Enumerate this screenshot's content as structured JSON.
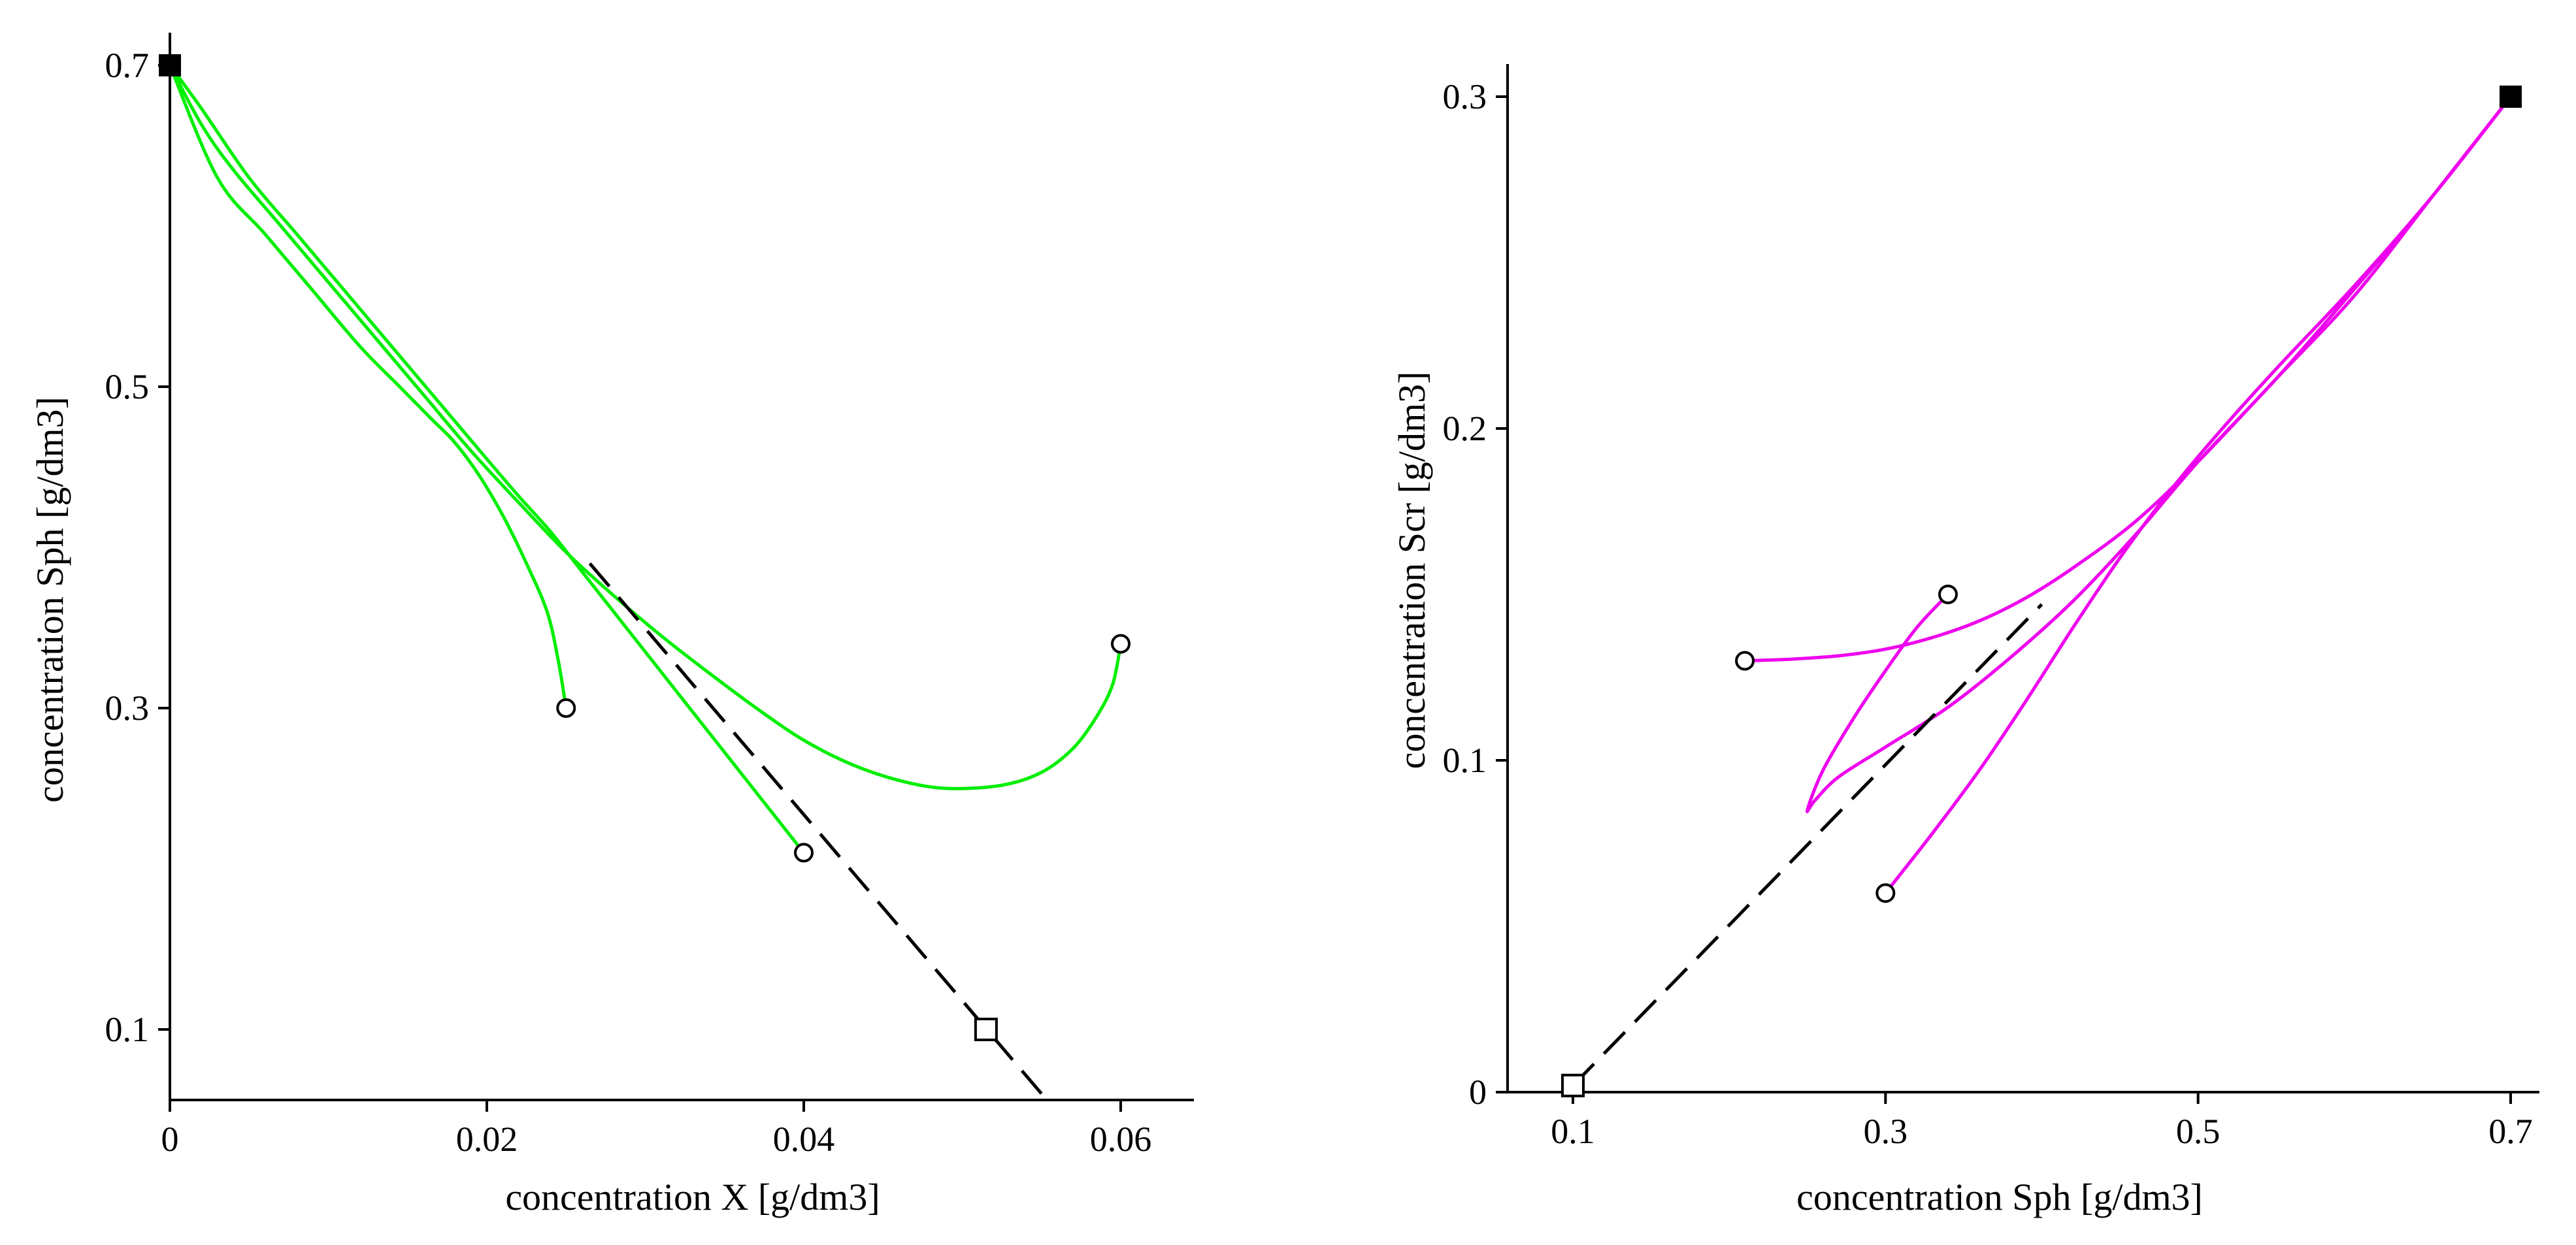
{
  "colors": {
    "left_curves": "#00ee00",
    "right_curves": "#ee00ee",
    "axis": "#000000",
    "dashed": "#000000"
  },
  "chart_data": [
    {
      "type": "line",
      "title": "",
      "xlabel": "concentration X [g/dm3]",
      "ylabel": "concentration Sph [g/dm3]",
      "xlim": [
        0,
        0.065
      ],
      "ylim": [
        0.055,
        0.72
      ],
      "xticks": [
        0,
        0.02,
        0.04,
        0.06
      ],
      "xtick_labels": [
        "0",
        "0.02",
        "0.04",
        "0.06"
      ],
      "yticks": [
        0.1,
        0.3,
        0.5,
        0.7
      ],
      "ytick_labels": [
        "0.1",
        "0.3",
        "0.5",
        "0.7"
      ],
      "series": [
        {
          "name": "trajectory-1",
          "color": "#00ee00",
          "x": [
            0.025,
            0.0245,
            0.0238,
            0.0225,
            0.021,
            0.0195,
            0.018,
            0.0165,
            0.0145,
            0.012,
            0.009,
            0.006,
            0.003,
            0
          ],
          "y": [
            0.3,
            0.33,
            0.36,
            0.39,
            0.42,
            0.445,
            0.465,
            0.48,
            0.5,
            0.525,
            0.56,
            0.595,
            0.63,
            0.7
          ]
        },
        {
          "name": "trajectory-2",
          "color": "#00ee00",
          "x": [
            0.04,
            0.038,
            0.036,
            0.034,
            0.032,
            0.03,
            0.028,
            0.026,
            0.024,
            0.022,
            0.02,
            0.017,
            0.014,
            0.011,
            0.008,
            0.005,
            0.002,
            0
          ],
          "y": [
            0.21,
            0.235,
            0.26,
            0.285,
            0.31,
            0.335,
            0.36,
            0.385,
            0.41,
            0.432,
            0.455,
            0.49,
            0.525,
            0.56,
            0.595,
            0.63,
            0.673,
            0.7
          ]
        },
        {
          "name": "trajectory-3",
          "color": "#00ee00",
          "x": [
            0.06,
            0.0595,
            0.0585,
            0.057,
            0.055,
            0.0525,
            0.049,
            0.046,
            0.043,
            0.04,
            0.037,
            0.034,
            0.031,
            0.028,
            0.025,
            0.022,
            0.019,
            0.016,
            0.013,
            0.01,
            0.007,
            0.004,
            0.002,
            0
          ],
          "y": [
            0.34,
            0.315,
            0.295,
            0.275,
            0.26,
            0.252,
            0.25,
            0.255,
            0.265,
            0.28,
            0.3,
            0.322,
            0.345,
            0.37,
            0.397,
            0.428,
            0.46,
            0.495,
            0.53,
            0.565,
            0.6,
            0.635,
            0.663,
            0.7
          ]
        },
        {
          "name": "reference-line",
          "style": "dashed",
          "color": "#000000",
          "x": [
            0.0265,
            0.055
          ],
          "y": [
            0.39,
            0.06
          ]
        }
      ],
      "markers": [
        {
          "name": "start-point",
          "shape": "filled-square",
          "x": 0,
          "y": 0.7
        },
        {
          "name": "initial-point-1",
          "shape": "open-circle",
          "x": 0.025,
          "y": 0.3
        },
        {
          "name": "initial-point-2",
          "shape": "open-circle",
          "x": 0.04,
          "y": 0.21
        },
        {
          "name": "initial-point-3",
          "shape": "open-circle",
          "x": 0.06,
          "y": 0.34
        },
        {
          "name": "equilibrium-point",
          "shape": "open-square",
          "x": 0.0515,
          "y": 0.1
        }
      ]
    },
    {
      "type": "line",
      "title": "",
      "xlabel": "concentration Sph [g/dm3]",
      "ylabel": "concentration Scr [g/dm3]",
      "xlim": [
        0.06,
        0.71
      ],
      "ylim": [
        0,
        0.31
      ],
      "xticks": [
        0.1,
        0.3,
        0.5,
        0.7
      ],
      "xtick_labels": [
        "0.1",
        "0.3",
        "0.5",
        "0.7"
      ],
      "yticks": [
        0,
        0.1,
        0.2,
        0.3
      ],
      "ytick_labels": [
        "0",
        "0.1",
        "0.2",
        "0.3"
      ],
      "series": [
        {
          "name": "trajectory-1",
          "color": "#ee00ee",
          "x": [
            0.21,
            0.24,
            0.27,
            0.3,
            0.33,
            0.36,
            0.39,
            0.42,
            0.46,
            0.5,
            0.55,
            0.6,
            0.65,
            0.7
          ],
          "y": [
            0.13,
            0.1305,
            0.1315,
            0.1335,
            0.137,
            0.142,
            0.149,
            0.158,
            0.172,
            0.19,
            0.215,
            0.24,
            0.27,
            0.3
          ]
        },
        {
          "name": "trajectory-2",
          "color": "#ee00ee",
          "x": [
            0.3,
            0.33,
            0.36,
            0.39,
            0.42,
            0.45,
            0.48,
            0.51,
            0.55,
            0.6,
            0.65,
            0.7
          ],
          "y": [
            0.06,
            0.078,
            0.097,
            0.118,
            0.14,
            0.161,
            0.18,
            0.197,
            0.218,
            0.243,
            0.27,
            0.3
          ]
        },
        {
          "name": "trajectory-3",
          "color": "#ee00ee",
          "x": [
            0.34,
            0.32,
            0.3,
            0.28,
            0.26,
            0.25,
            0.255,
            0.27,
            0.3,
            0.34,
            0.38,
            0.42,
            0.46,
            0.5,
            0.55,
            0.6,
            0.65,
            0.7
          ],
          "y": [
            0.15,
            0.14,
            0.127,
            0.113,
            0.097,
            0.085,
            0.088,
            0.095,
            0.104,
            0.116,
            0.131,
            0.148,
            0.168,
            0.19,
            0.215,
            0.242,
            0.27,
            0.3
          ]
        },
        {
          "name": "reference-line",
          "style": "dashed",
          "color": "#000000",
          "x": [
            0.1,
            0.4
          ],
          "y": [
            0.002,
            0.147
          ]
        }
      ],
      "markers": [
        {
          "name": "start-point",
          "shape": "filled-square",
          "x": 0.7,
          "y": 0.3
        },
        {
          "name": "initial-point-1",
          "shape": "open-circle",
          "x": 0.21,
          "y": 0.13
        },
        {
          "name": "initial-point-2",
          "shape": "open-circle",
          "x": 0.3,
          "y": 0.06
        },
        {
          "name": "initial-point-3",
          "shape": "open-circle",
          "x": 0.34,
          "y": 0.15
        },
        {
          "name": "equilibrium-point",
          "shape": "open-square",
          "x": 0.1,
          "y": 0.002
        }
      ]
    }
  ]
}
